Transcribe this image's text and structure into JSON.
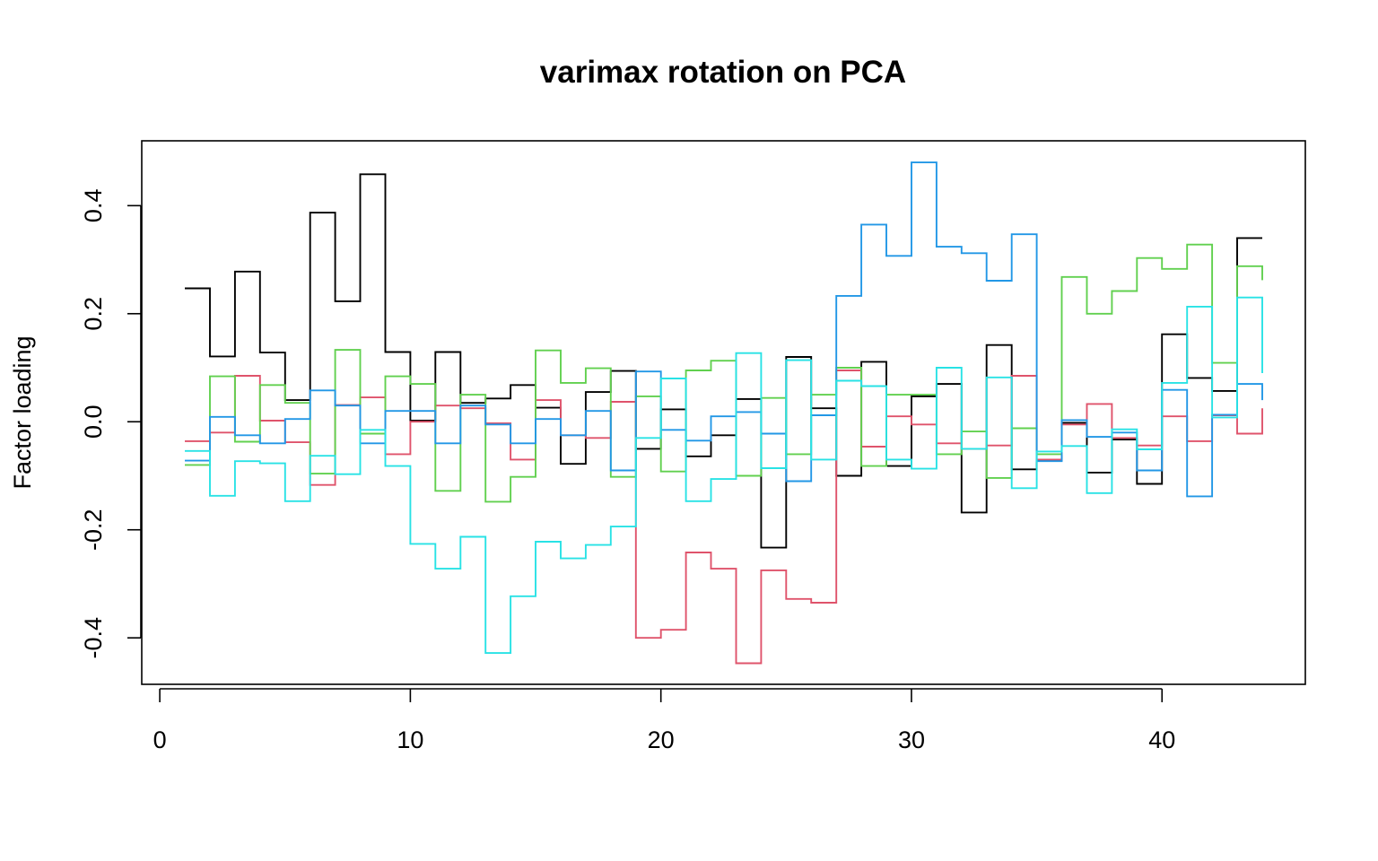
{
  "chart_data": {
    "type": "line",
    "step": true,
    "title": "varimax rotation on PCA",
    "xlabel": "",
    "ylabel": "Factor loading",
    "xlim": [
      -0.72,
      45.72
    ],
    "ylim": [
      -0.486,
      0.52
    ],
    "x_ticks": [
      0,
      10,
      20,
      30,
      40
    ],
    "x_tick_labels": [
      "0",
      "10",
      "20",
      "30",
      "40"
    ],
    "y_ticks": [
      -0.4,
      -0.2,
      0.0,
      0.2,
      0.4
    ],
    "y_tick_labels": [
      "-0.4",
      "-0.2",
      "0.0",
      "0.2",
      "0.4"
    ],
    "grid": false,
    "legend": "none",
    "x": [
      1,
      2,
      3,
      4,
      5,
      6,
      7,
      8,
      9,
      10,
      11,
      12,
      13,
      14,
      15,
      16,
      17,
      18,
      19,
      20,
      21,
      22,
      23,
      24,
      25,
      26,
      27,
      28,
      29,
      30,
      31,
      32,
      33,
      34,
      35,
      36,
      37,
      38,
      39,
      40,
      41,
      42,
      43,
      44
    ],
    "series": [
      {
        "color": "#000000",
        "values": [
          0.247,
          0.121,
          0.278,
          0.128,
          0.04,
          0.387,
          0.223,
          0.458,
          0.129,
          0.002,
          0.129,
          0.035,
          0.043,
          0.068,
          0.026,
          -0.078,
          0.055,
          0.094,
          -0.05,
          0.023,
          -0.064,
          -0.025,
          0.042,
          -0.233,
          0.12,
          0.025,
          -0.1,
          0.111,
          -0.082,
          0.047,
          0.07,
          -0.168,
          0.142,
          -0.088,
          -0.071,
          -0.002,
          -0.094,
          -0.033,
          -0.115,
          0.162,
          0.081,
          0.057,
          0.34,
          0.34
        ]
      },
      {
        "color": "#DF536B",
        "values": [
          -0.036,
          -0.02,
          0.085,
          0.002,
          -0.038,
          -0.117,
          0.031,
          0.045,
          -0.06,
          0.0,
          0.03,
          0.025,
          -0.003,
          -0.07,
          0.04,
          -0.025,
          -0.03,
          0.037,
          -0.4,
          -0.385,
          -0.242,
          -0.272,
          -0.447,
          -0.275,
          -0.328,
          -0.335,
          0.095,
          -0.046,
          0.01,
          -0.005,
          -0.04,
          -0.05,
          -0.044,
          0.085,
          -0.07,
          -0.005,
          0.033,
          -0.03,
          -0.044,
          0.01,
          -0.036,
          0.012,
          -0.022,
          0.025
        ]
      },
      {
        "color": "#61D04F",
        "values": [
          -0.08,
          0.084,
          -0.037,
          0.068,
          0.035,
          -0.096,
          0.133,
          -0.022,
          0.084,
          0.07,
          -0.128,
          0.05,
          -0.148,
          -0.102,
          0.132,
          0.072,
          0.099,
          -0.102,
          0.047,
          -0.092,
          0.095,
          0.113,
          -0.1,
          0.044,
          -0.06,
          0.05,
          0.1,
          -0.082,
          0.05,
          0.05,
          -0.06,
          -0.018,
          -0.104,
          -0.012,
          -0.06,
          0.268,
          0.2,
          0.242,
          0.303,
          0.283,
          0.328,
          0.109,
          0.288,
          0.262
        ]
      },
      {
        "color": "#2297E6",
        "values": [
          -0.072,
          0.009,
          -0.025,
          -0.04,
          0.005,
          0.058,
          0.03,
          -0.04,
          0.02,
          0.02,
          -0.04,
          0.03,
          -0.005,
          -0.04,
          0.005,
          -0.025,
          0.02,
          -0.09,
          0.093,
          -0.015,
          -0.035,
          0.01,
          0.018,
          -0.022,
          -0.11,
          0.012,
          0.233,
          0.365,
          0.307,
          0.48,
          0.324,
          0.312,
          0.261,
          0.347,
          -0.073,
          0.003,
          -0.028,
          -0.02,
          -0.09,
          0.059,
          -0.138,
          0.013,
          0.07,
          0.04
        ]
      },
      {
        "color": "#28E2E5",
        "values": [
          -0.054,
          -0.137,
          -0.073,
          -0.077,
          -0.147,
          -0.063,
          -0.097,
          -0.015,
          -0.082,
          -0.226,
          -0.272,
          -0.213,
          -0.428,
          -0.323,
          -0.222,
          -0.253,
          -0.228,
          -0.194,
          -0.03,
          0.08,
          -0.147,
          -0.106,
          0.127,
          -0.086,
          0.114,
          -0.07,
          0.076,
          0.066,
          -0.07,
          -0.087,
          0.1,
          -0.05,
          0.082,
          -0.123,
          -0.055,
          -0.045,
          -0.132,
          -0.014,
          -0.051,
          0.072,
          0.213,
          0.008,
          0.23,
          0.09
        ]
      }
    ]
  }
}
